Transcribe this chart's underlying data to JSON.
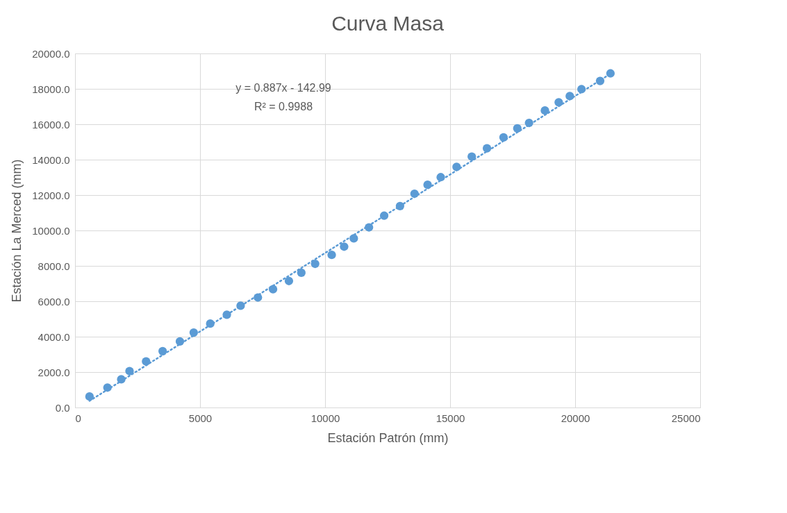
{
  "chart_data": {
    "type": "scatter",
    "title": "Curva Masa",
    "xlabel": "Estación Patrón (mm)",
    "ylabel": "Estación La Merced (mm)",
    "x": [
      580,
      1297,
      1849,
      2180,
      2842,
      3504,
      4194,
      4746,
      5408,
      6071,
      6623,
      7313,
      7919,
      8554,
      9051,
      9603,
      10265,
      10762,
      11148,
      11755,
      12362,
      12997,
      13576,
      14100,
      14625,
      15259,
      15866,
      16474,
      17136,
      17688,
      18157,
      18792,
      19344,
      19786,
      20254,
      20999,
      21413
    ],
    "series": [
      {
        "color": "#5b9bd5",
        "marker": "circle",
        "values": [
          621,
          1126,
          1592,
          2058,
          2602,
          3184,
          3728,
          4233,
          4738,
          5243,
          5748,
          6214,
          6680,
          7146,
          7612,
          8117,
          8621,
          9087,
          9553,
          10175,
          10835,
          11379,
          12078,
          12583,
          13010,
          13592,
          14175,
          14641,
          15262,
          15767,
          16078,
          16777,
          17243,
          17592,
          17981,
          18447,
          18874
        ]
      },
      {
        "type": "line",
        "color": "#5b9bd5",
        "line_style": "dotted",
        "x": [
          580,
          21413
        ],
        "values": [
          372,
          18850
        ]
      }
    ],
    "annotations": [
      "y = 0.887x - 142.99",
      "R² = 0.9988"
    ],
    "xlim": [
      0,
      25000
    ],
    "xticks": [
      0,
      5000,
      10000,
      15000,
      20000,
      25000
    ],
    "ylim": [
      0,
      20000
    ],
    "yticks": [
      {
        "value": 0,
        "label": "0.0"
      },
      {
        "value": 2000,
        "label": "2000.0"
      },
      {
        "value": 4000,
        "label": "4000.0"
      },
      {
        "value": 6000,
        "label": "6000.0"
      },
      {
        "value": 8000,
        "label": "8000.0"
      },
      {
        "value": 10000,
        "label": "10000.0"
      },
      {
        "value": 12000,
        "label": "12000.0"
      },
      {
        "value": 14000,
        "label": "14000.0"
      },
      {
        "value": 16000,
        "label": "16000.0"
      },
      {
        "value": 18000,
        "label": "18000.0"
      },
      {
        "value": 20000,
        "label": "20000.0"
      }
    ],
    "grid": true,
    "legend": false
  }
}
